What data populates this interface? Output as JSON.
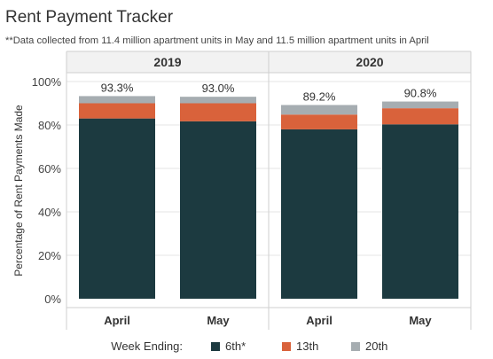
{
  "chart_data": {
    "type": "bar",
    "stacked": true,
    "title": "Rent Payment Tracker",
    "subtitle": "**Data collected from 11.4 million apartment units in May and 11.5 million apartment units in April",
    "ylabel": "Percentage of Rent Payments Made",
    "ylim": [
      0,
      100
    ],
    "yticks": [
      "0%",
      "20%",
      "40%",
      "60%",
      "80%",
      "100%"
    ],
    "groups": [
      {
        "label": "2019",
        "categories": [
          "April",
          "May"
        ]
      },
      {
        "label": "2020",
        "categories": [
          "April",
          "May"
        ]
      }
    ],
    "series": [
      {
        "name": "6th*",
        "color": "#1c3a40",
        "values": [
          83.0,
          81.7,
          78.0,
          80.3
        ]
      },
      {
        "name": "13th",
        "color": "#d9623b",
        "values": [
          7.0,
          8.3,
          6.8,
          7.4
        ]
      },
      {
        "name": "20th",
        "color": "#a6adb1",
        "values": [
          3.3,
          3.0,
          4.4,
          3.1
        ]
      }
    ],
    "totals": [
      "93.3%",
      "93.0%",
      "89.2%",
      "90.8%"
    ],
    "legend": {
      "title": "Week Ending:",
      "position": "bottom"
    },
    "grid": "horizontal"
  }
}
